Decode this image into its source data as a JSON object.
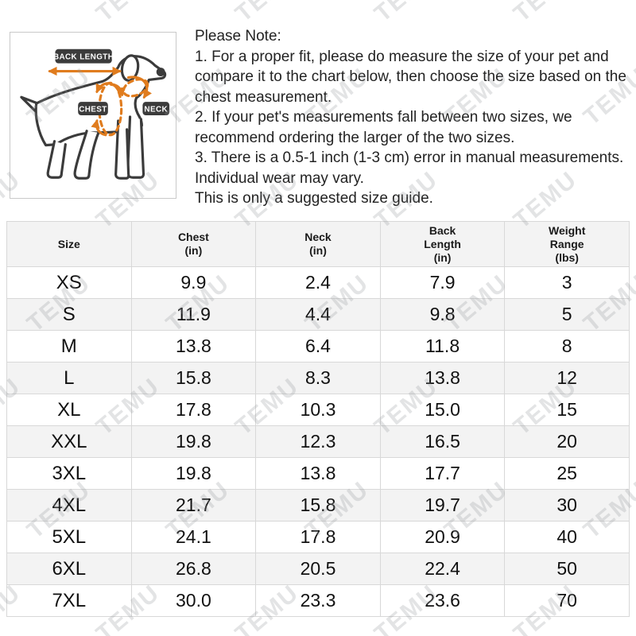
{
  "watermark": {
    "text": "TEMU"
  },
  "diagram": {
    "back_length_label": "BACK LENGTH",
    "chest_label": "CHEST",
    "neck_label": "NECK",
    "accent_color": "#e07c1e",
    "label_bg_color": "#3b3b3b"
  },
  "note": {
    "title": "Please Note:",
    "items": [
      "1. For a proper fit, please do measure the size of your pet and compare it to the chart below, then choose the size based on the chest measurement.",
      "2. If your pet's measurements fall between two sizes, we recommend ordering the larger of the two sizes.",
      "3. There is a 0.5-1 inch (1-3 cm) error in manual measurements. Individual wear may vary.",
      "This is only a suggested size guide."
    ]
  },
  "table": {
    "headers": [
      "Size",
      "Chest\n(in)",
      "Neck\n(in)",
      "Back\nLength\n(in)",
      "Weight\nRange\n(lbs)"
    ],
    "rows": [
      [
        "XS",
        "9.9",
        "2.4",
        "7.9",
        "3"
      ],
      [
        "S",
        "11.9",
        "4.4",
        "9.8",
        "5"
      ],
      [
        "M",
        "13.8",
        "6.4",
        "11.8",
        "8"
      ],
      [
        "L",
        "15.8",
        "8.3",
        "13.8",
        "12"
      ],
      [
        "XL",
        "17.8",
        "10.3",
        "15.0",
        "15"
      ],
      [
        "XXL",
        "19.8",
        "12.3",
        "16.5",
        "20"
      ],
      [
        "3XL",
        "19.8",
        "13.8",
        "17.7",
        "25"
      ],
      [
        "4XL",
        "21.7",
        "15.8",
        "19.7",
        "30"
      ],
      [
        "5XL",
        "24.1",
        "17.8",
        "20.9",
        "40"
      ],
      [
        "6XL",
        "26.8",
        "20.5",
        "22.4",
        "50"
      ],
      [
        "7XL",
        "30.0",
        "23.3",
        "23.6",
        "70"
      ]
    ]
  }
}
